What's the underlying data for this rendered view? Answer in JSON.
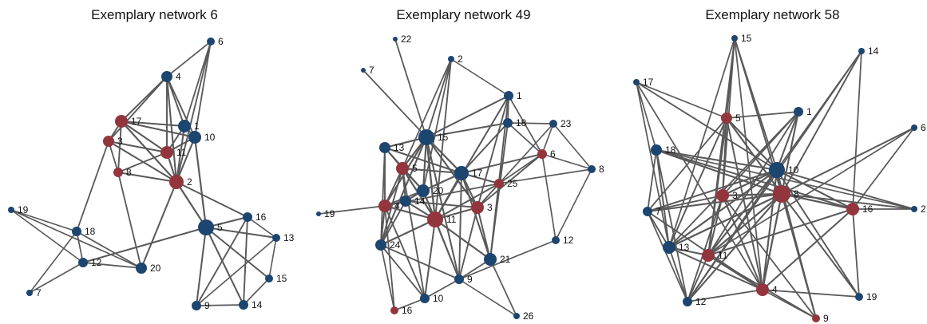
{
  "colors": {
    "edge": "#595959",
    "blue": "#1c4570",
    "red": "#93353d",
    "text": "#111111"
  },
  "networks": [
    {
      "title": "Exemplary network 6",
      "nodes": [
        {
          "id": "6",
          "color": "blue"
        },
        {
          "id": "4",
          "color": "blue"
        },
        {
          "id": "17",
          "color": "red"
        },
        {
          "id": "1",
          "color": "blue"
        },
        {
          "id": "10",
          "color": "blue"
        },
        {
          "id": "3",
          "color": "red"
        },
        {
          "id": "11",
          "color": "red"
        },
        {
          "id": "8",
          "color": "red"
        },
        {
          "id": "2",
          "color": "red"
        },
        {
          "id": "19",
          "color": "blue"
        },
        {
          "id": "18",
          "color": "blue"
        },
        {
          "id": "12",
          "color": "blue"
        },
        {
          "id": "7",
          "color": "blue"
        },
        {
          "id": "20",
          "color": "blue"
        },
        {
          "id": "5",
          "color": "blue"
        },
        {
          "id": "16",
          "color": "blue"
        },
        {
          "id": "13",
          "color": "blue"
        },
        {
          "id": "15",
          "color": "blue"
        },
        {
          "id": "9",
          "color": "blue"
        },
        {
          "id": "14",
          "color": "blue"
        }
      ],
      "edges": [
        [
          "6",
          "4"
        ],
        [
          "6",
          "1"
        ],
        [
          "6",
          "10"
        ],
        [
          "6",
          "2"
        ],
        [
          "4",
          "17"
        ],
        [
          "4",
          "1"
        ],
        [
          "4",
          "10"
        ],
        [
          "4",
          "11"
        ],
        [
          "4",
          "2"
        ],
        [
          "4",
          "3"
        ],
        [
          "17",
          "1"
        ],
        [
          "17",
          "10"
        ],
        [
          "17",
          "11"
        ],
        [
          "17",
          "3"
        ],
        [
          "17",
          "2"
        ],
        [
          "17",
          "8"
        ],
        [
          "1",
          "10"
        ],
        [
          "1",
          "11"
        ],
        [
          "1",
          "2"
        ],
        [
          "10",
          "11"
        ],
        [
          "10",
          "2"
        ],
        [
          "10",
          "5"
        ],
        [
          "3",
          "11"
        ],
        [
          "3",
          "8"
        ],
        [
          "3",
          "18"
        ],
        [
          "3",
          "2"
        ],
        [
          "11",
          "2"
        ],
        [
          "11",
          "8"
        ],
        [
          "8",
          "2"
        ],
        [
          "8",
          "20"
        ],
        [
          "2",
          "20"
        ],
        [
          "2",
          "5"
        ],
        [
          "2",
          "16"
        ],
        [
          "19",
          "18"
        ],
        [
          "19",
          "12"
        ],
        [
          "19",
          "20"
        ],
        [
          "18",
          "12"
        ],
        [
          "18",
          "7"
        ],
        [
          "18",
          "20"
        ],
        [
          "12",
          "7"
        ],
        [
          "12",
          "20"
        ],
        [
          "12",
          "5"
        ],
        [
          "5",
          "16"
        ],
        [
          "5",
          "13"
        ],
        [
          "5",
          "9"
        ],
        [
          "5",
          "14"
        ],
        [
          "5",
          "15"
        ],
        [
          "16",
          "13"
        ],
        [
          "16",
          "9"
        ],
        [
          "16",
          "14"
        ],
        [
          "13",
          "15"
        ],
        [
          "13",
          "9"
        ],
        [
          "15",
          "14"
        ],
        [
          "9",
          "14"
        ],
        [
          "9",
          "16"
        ],
        [
          "14",
          "16"
        ]
      ]
    },
    {
      "title": "Exemplary network 49",
      "nodes": [
        {
          "id": "22",
          "color": "blue"
        },
        {
          "id": "2",
          "color": "blue"
        },
        {
          "id": "7",
          "color": "blue"
        },
        {
          "id": "1",
          "color": "blue"
        },
        {
          "id": "18",
          "color": "blue"
        },
        {
          "id": "23",
          "color": "blue"
        },
        {
          "id": "15",
          "color": "blue"
        },
        {
          "id": "13",
          "color": "blue"
        },
        {
          "id": "6",
          "color": "red"
        },
        {
          "id": "8",
          "color": "blue"
        },
        {
          "id": "5",
          "color": "red"
        },
        {
          "id": "17",
          "color": "blue"
        },
        {
          "id": "25",
          "color": "red"
        },
        {
          "id": "20",
          "color": "blue"
        },
        {
          "id": "14",
          "color": "blue"
        },
        {
          "id": "4",
          "color": "red"
        },
        {
          "id": "3",
          "color": "red"
        },
        {
          "id": "11",
          "color": "red"
        },
        {
          "id": "19",
          "color": "blue"
        },
        {
          "id": "12",
          "color": "blue"
        },
        {
          "id": "24",
          "color": "blue"
        },
        {
          "id": "21",
          "color": "blue"
        },
        {
          "id": "9",
          "color": "blue"
        },
        {
          "id": "10",
          "color": "blue"
        },
        {
          "id": "16",
          "color": "red"
        },
        {
          "id": "26",
          "color": "blue"
        }
      ],
      "edges": [
        [
          "22",
          "15"
        ],
        [
          "7",
          "15"
        ],
        [
          "2",
          "15"
        ],
        [
          "2",
          "5"
        ],
        [
          "2",
          "11"
        ],
        [
          "2",
          "1"
        ],
        [
          "2",
          "20"
        ],
        [
          "1",
          "15"
        ],
        [
          "1",
          "18"
        ],
        [
          "1",
          "3"
        ],
        [
          "1",
          "21"
        ],
        [
          "1",
          "11"
        ],
        [
          "18",
          "15"
        ],
        [
          "18",
          "23"
        ],
        [
          "18",
          "6"
        ],
        [
          "18",
          "21"
        ],
        [
          "18",
          "17"
        ],
        [
          "23",
          "6"
        ],
        [
          "23",
          "25"
        ],
        [
          "23",
          "8"
        ],
        [
          "15",
          "13"
        ],
        [
          "15",
          "5"
        ],
        [
          "15",
          "17"
        ],
        [
          "15",
          "20"
        ],
        [
          "15",
          "11"
        ],
        [
          "15",
          "4"
        ],
        [
          "15",
          "9"
        ],
        [
          "15",
          "3"
        ],
        [
          "15",
          "24"
        ],
        [
          "13",
          "5"
        ],
        [
          "13",
          "4"
        ],
        [
          "13",
          "24"
        ],
        [
          "13",
          "20"
        ],
        [
          "13",
          "17"
        ],
        [
          "6",
          "8"
        ],
        [
          "6",
          "17"
        ],
        [
          "6",
          "25"
        ],
        [
          "6",
          "3"
        ],
        [
          "6",
          "1"
        ],
        [
          "5",
          "17"
        ],
        [
          "5",
          "20"
        ],
        [
          "5",
          "14"
        ],
        [
          "5",
          "4"
        ],
        [
          "5",
          "11"
        ],
        [
          "5",
          "24"
        ],
        [
          "5",
          "10"
        ],
        [
          "17",
          "20"
        ],
        [
          "17",
          "25"
        ],
        [
          "17",
          "3"
        ],
        [
          "17",
          "11"
        ],
        [
          "17",
          "21"
        ],
        [
          "17",
          "9"
        ],
        [
          "25",
          "3"
        ],
        [
          "25",
          "11"
        ],
        [
          "25",
          "21"
        ],
        [
          "25",
          "4"
        ],
        [
          "20",
          "14"
        ],
        [
          "20",
          "11"
        ],
        [
          "20",
          "4"
        ],
        [
          "20",
          "9"
        ],
        [
          "14",
          "4"
        ],
        [
          "14",
          "11"
        ],
        [
          "14",
          "24"
        ],
        [
          "4",
          "11"
        ],
        [
          "4",
          "24"
        ],
        [
          "4",
          "16"
        ],
        [
          "4",
          "10"
        ],
        [
          "4",
          "19"
        ],
        [
          "3",
          "11"
        ],
        [
          "3",
          "21"
        ],
        [
          "3",
          "9"
        ],
        [
          "11",
          "9"
        ],
        [
          "11",
          "10"
        ],
        [
          "11",
          "24"
        ],
        [
          "11",
          "21"
        ],
        [
          "24",
          "10"
        ],
        [
          "24",
          "16"
        ],
        [
          "24",
          "9"
        ],
        [
          "21",
          "9"
        ],
        [
          "21",
          "26"
        ],
        [
          "12",
          "8"
        ],
        [
          "12",
          "9"
        ],
        [
          "9",
          "10"
        ],
        [
          "9",
          "26"
        ],
        [
          "10",
          "16"
        ],
        [
          "8",
          "25"
        ],
        [
          "12",
          "6"
        ],
        [
          "14",
          "3"
        ]
      ]
    },
    {
      "title": "Exemplary network 58",
      "nodes": [
        {
          "id": "15",
          "color": "blue"
        },
        {
          "id": "14",
          "color": "blue"
        },
        {
          "id": "17",
          "color": "blue"
        },
        {
          "id": "5",
          "color": "red"
        },
        {
          "id": "1",
          "color": "blue"
        },
        {
          "id": "6",
          "color": "blue"
        },
        {
          "id": "18",
          "color": "blue"
        },
        {
          "id": "10",
          "color": "blue"
        },
        {
          "id": "3",
          "color": "red"
        },
        {
          "id": "8",
          "color": "red"
        },
        {
          "id": "2",
          "color": "blue"
        },
        {
          "id": "7",
          "color": "blue"
        },
        {
          "id": "16",
          "color": "red"
        },
        {
          "id": "13",
          "color": "blue"
        },
        {
          "id": "11",
          "color": "red"
        },
        {
          "id": "4",
          "color": "red"
        },
        {
          "id": "12",
          "color": "blue"
        },
        {
          "id": "19",
          "color": "blue"
        },
        {
          "id": "9",
          "color": "red"
        }
      ],
      "edges": [
        [
          "15",
          "5"
        ],
        [
          "15",
          "10"
        ],
        [
          "15",
          "8"
        ],
        [
          "15",
          "3"
        ],
        [
          "15",
          "11"
        ],
        [
          "15",
          "4"
        ],
        [
          "15",
          "13"
        ],
        [
          "14",
          "10"
        ],
        [
          "14",
          "8"
        ],
        [
          "14",
          "16"
        ],
        [
          "14",
          "12"
        ],
        [
          "17",
          "5"
        ],
        [
          "17",
          "10"
        ],
        [
          "17",
          "13"
        ],
        [
          "17",
          "4"
        ],
        [
          "17",
          "18"
        ],
        [
          "5",
          "1"
        ],
        [
          "5",
          "10"
        ],
        [
          "5",
          "8"
        ],
        [
          "5",
          "3"
        ],
        [
          "5",
          "11"
        ],
        [
          "5",
          "4"
        ],
        [
          "5",
          "13"
        ],
        [
          "5",
          "7"
        ],
        [
          "1",
          "10"
        ],
        [
          "1",
          "8"
        ],
        [
          "1",
          "11"
        ],
        [
          "1",
          "3"
        ],
        [
          "1",
          "13"
        ],
        [
          "6",
          "8"
        ],
        [
          "6",
          "11"
        ],
        [
          "6",
          "16"
        ],
        [
          "18",
          "10"
        ],
        [
          "18",
          "8"
        ],
        [
          "18",
          "16"
        ],
        [
          "18",
          "7"
        ],
        [
          "18",
          "13"
        ],
        [
          "18",
          "12"
        ],
        [
          "18",
          "2"
        ],
        [
          "10",
          "3"
        ],
        [
          "10",
          "8"
        ],
        [
          "10",
          "16"
        ],
        [
          "10",
          "7"
        ],
        [
          "10",
          "11"
        ],
        [
          "10",
          "4"
        ],
        [
          "10",
          "13"
        ],
        [
          "10",
          "12"
        ],
        [
          "10",
          "9"
        ],
        [
          "10",
          "19"
        ],
        [
          "10",
          "2"
        ],
        [
          "3",
          "8"
        ],
        [
          "3",
          "11"
        ],
        [
          "3",
          "4"
        ],
        [
          "3",
          "7"
        ],
        [
          "3",
          "12"
        ],
        [
          "8",
          "16"
        ],
        [
          "8",
          "7"
        ],
        [
          "8",
          "11"
        ],
        [
          "8",
          "4"
        ],
        [
          "8",
          "13"
        ],
        [
          "8",
          "12"
        ],
        [
          "8",
          "9"
        ],
        [
          "8",
          "19"
        ],
        [
          "8",
          "2"
        ],
        [
          "16",
          "2"
        ],
        [
          "16",
          "4"
        ],
        [
          "16",
          "19"
        ],
        [
          "16",
          "11"
        ],
        [
          "7",
          "13"
        ],
        [
          "7",
          "12"
        ],
        [
          "7",
          "4"
        ],
        [
          "13",
          "11"
        ],
        [
          "13",
          "4"
        ],
        [
          "13",
          "12"
        ],
        [
          "11",
          "4"
        ],
        [
          "11",
          "12"
        ],
        [
          "11",
          "9"
        ],
        [
          "4",
          "12"
        ],
        [
          "4",
          "9"
        ],
        [
          "4",
          "19"
        ],
        [
          "9",
          "3"
        ]
      ]
    }
  ]
}
